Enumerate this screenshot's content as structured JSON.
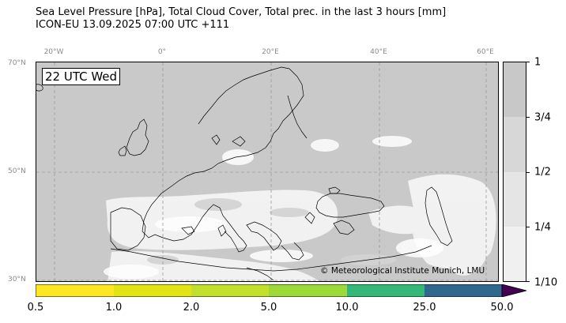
{
  "header": {
    "title_line1": "Sea Level Pressure [hPa], Total Cloud Cover, Total prec. in the last 3 hours [mm]",
    "title_line2": "ICON-EU 13.09.2025 07:00 UTC +111"
  },
  "map": {
    "time_label": "22 UTC Wed",
    "credit": "© Meteorological Institute Munich, LMU",
    "lon_ticks": [
      "20°W",
      "0°",
      "20°E",
      "40°E",
      "60°E"
    ],
    "lat_ticks": [
      "70°N",
      "50°N",
      "30°N"
    ]
  },
  "cloud_colorbar": {
    "labels": [
      "1",
      "3/4",
      "1/2",
      "1/4",
      "1/10"
    ],
    "colors": [
      "#c8c8c8",
      "#d7d7d7",
      "#e5e5e5",
      "#f0f0f0"
    ]
  },
  "precip_colorbar": {
    "labels": [
      "0.5",
      "1.0",
      "2.0",
      "5.0",
      "10.0",
      "25.0",
      "50.0"
    ],
    "colors": [
      "#fde725",
      "#e2e418",
      "#c3df2d",
      "#9ed93a",
      "#35b779",
      "#31688e",
      "#440154"
    ]
  }
}
